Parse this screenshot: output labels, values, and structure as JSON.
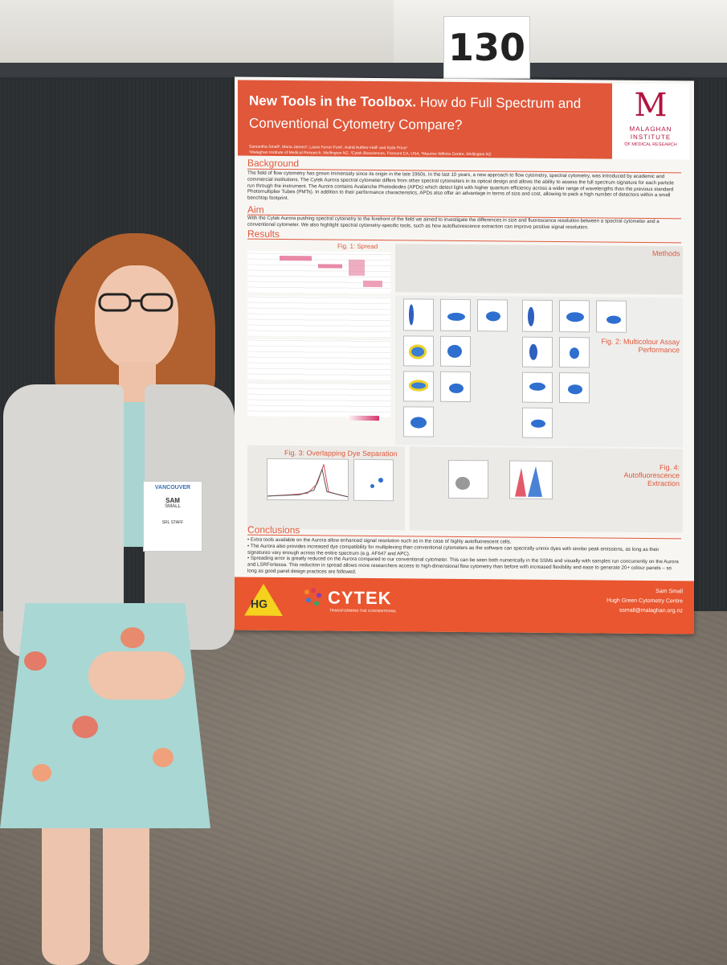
{
  "scene": {
    "booth_number": "130"
  },
  "poster": {
    "title_bold": "New Tools in the Toolbox.",
    "title_rest": "How do Full Spectrum and Conventional Cytometry Compare?",
    "logo": {
      "letter": "M",
      "line1": "MALAGHAN",
      "line2": "INSTITUTE",
      "line3": "OF MEDICAL RESEARCH"
    },
    "authors": "Samantha Small¹, Maria Jaimes², Laura Ferrer-Font¹, Astrid Authier-Hall¹ and Kylie Price¹",
    "affiliations": "¹Malaghan Institute of Medical Research, Wellington NZ, ²Cytek Biosciences, Fremont CA, USA, ³Maurice Wilkins Centre, Wellington NZ",
    "background_heading": "Background",
    "background_text": "The field of flow cytometry has grown immensely since its origin in the late 1960s. In the last 10 years, a new approach to flow cytometry, spectral cytometry, was introduced by academic and commercial institutions. The Cytek Aurora spectral cytometer differs from other spectral cytometers in its optical design and allows the ability to assess the full spectrum signature for each particle run through the instrument. The Aurora contains Avalanche Photodiodes (APDs) which detect light with higher quantum efficiency across a wider range of wavelengths than the previous standard Photomultiplier Tubes (PMTs). In addition to their performance characteristics, APDs also offer an advantage in terms of size and cost, allowing to pack a high number of detectors within a small benchtop footprint.",
    "aim_heading": "Aim",
    "aim_text": "With the Cytek Aurora pushing spectral cytometry to the forefront of the field we aimed to investigate the differences in size and fluorescence resolution between a spectral cytometer and a conventional cytometer. We also highlight spectral cytometry-specific tools, such as how autofluorescence extraction can improve positive signal resolution.",
    "results_heading": "Results",
    "fig1_title": "Fig. 1: Spread",
    "methods_heading": "Methods",
    "fig2_title": "Fig. 2: Multicolour Assay Performance",
    "fig3_title": "Fig. 3: Overlapping Dye Separation",
    "fig4_title": "Fig. 4: Autofluorescence Extraction",
    "conclusions_heading": "Conclusions",
    "conclusions": [
      "Extra tools available on the Aurora allow enhanced signal resolution such as in the case of highly autofluorescent cells.",
      "The Aurora also provides increased dye compatibility for multiplexing than conventional cytometers as the software can spectrally unmix dyes with similar peak emissions, as long as their signatures vary enough across the entire spectrum (e.g. AF647 and APC).",
      "Spreading error is greatly reduced on the Aurora compared to our conventional cytometer. This can be seen both numerically in the SSMs and visually with samples run concurrently on the Aurora and LSRFortessa. This reduction in spread allows more researchers access to high-dimensional flow cytometry than before with increased flexibility and ease to generate 20+ colour panels – so long as good panel design practices are followed."
    ],
    "footer": {
      "ag_logo": "HG",
      "cytek_logo": "CYTEK",
      "cytek_tagline": "TRANSFORMING THE CONVENTIONAL",
      "credit_name": "Sam Small",
      "credit_org": "Hugh Green Cytometry Centre",
      "credit_email": "ssmall@malaghan.org.nz"
    }
  },
  "badge": {
    "event": "VANCOUVER",
    "name1": "SAM",
    "name2": "SMALL",
    "role": "SRL STAFF"
  },
  "colors": {
    "poster_orange": "#e0573a",
    "malaghan_red": "#b3123e",
    "board": "#2a2e31"
  }
}
